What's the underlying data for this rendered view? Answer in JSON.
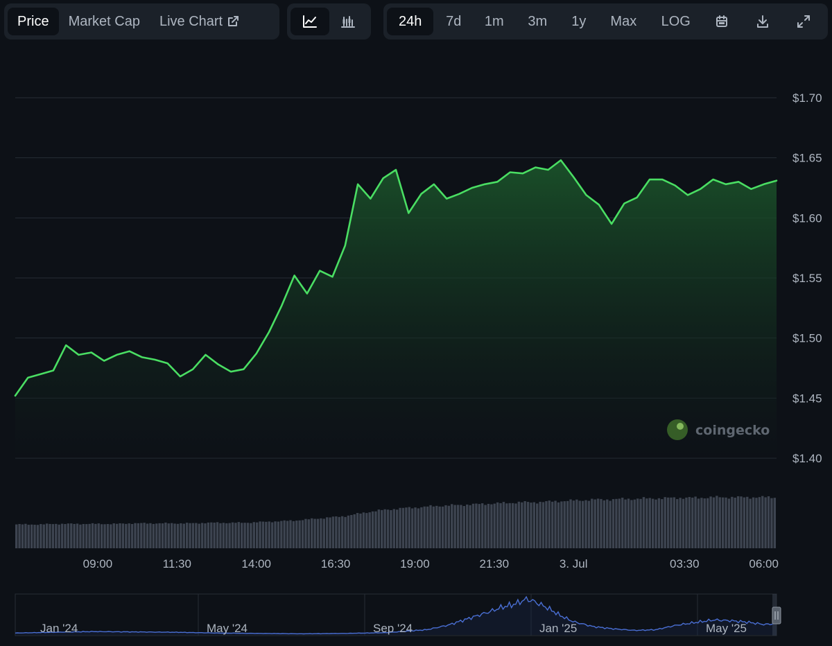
{
  "toolbar": {
    "view_tabs": [
      {
        "label": "Price",
        "active": true
      },
      {
        "label": "Market Cap",
        "active": false
      },
      {
        "label": "Live Chart",
        "active": false
      }
    ],
    "chart_types": [
      {
        "icon": "line-chart-icon",
        "active": true
      },
      {
        "icon": "candlestick-chart-icon",
        "active": false
      }
    ],
    "ranges": [
      {
        "label": "24h",
        "active": true
      },
      {
        "label": "7d",
        "active": false
      },
      {
        "label": "1m",
        "active": false
      },
      {
        "label": "3m",
        "active": false
      },
      {
        "label": "1y",
        "active": false
      },
      {
        "label": "Max",
        "active": false
      },
      {
        "label": "LOG",
        "active": false
      }
    ],
    "tools": [
      {
        "icon": "calendar-icon"
      },
      {
        "icon": "download-icon"
      },
      {
        "icon": "fullscreen-icon"
      }
    ]
  },
  "watermark": {
    "text": "coingecko"
  },
  "colors": {
    "line": "#4ade63",
    "area_top": "#1c5a2c",
    "grid": "#262d36",
    "volume": "#3d4450",
    "navigator_line": "#4a6fd4"
  },
  "chart_data": {
    "type": "area",
    "currency": "USD",
    "y_ticks": [
      "$1.70",
      "$1.65",
      "$1.60",
      "$1.55",
      "$1.50",
      "$1.45",
      "$1.40"
    ],
    "y_tick_values": [
      1.7,
      1.65,
      1.6,
      1.55,
      1.5,
      1.45,
      1.4
    ],
    "ylim": [
      1.4,
      1.7
    ],
    "x_ticks": [
      "09:00",
      "11:30",
      "14:00",
      "16:30",
      "19:00",
      "21:30",
      "3. Jul",
      "03:30",
      "06:00"
    ],
    "x_tick_hours": [
      9.0,
      11.5,
      14.0,
      16.5,
      19.0,
      21.5,
      24.0,
      27.5,
      30.0
    ],
    "xlim_hours": [
      6.4,
      30.4
    ],
    "series": [
      {
        "name": "Price",
        "x_hours": [
          6.4,
          6.8,
          7.2,
          7.6,
          8.0,
          8.4,
          8.8,
          9.2,
          9.6,
          10.0,
          10.4,
          10.8,
          11.2,
          11.6,
          12.0,
          12.4,
          12.8,
          13.2,
          13.6,
          14.0,
          14.4,
          14.8,
          15.2,
          15.6,
          16.0,
          16.4,
          16.8,
          17.2,
          17.6,
          18.0,
          18.4,
          18.8,
          19.2,
          19.6,
          20.0,
          20.4,
          20.8,
          21.2,
          21.6,
          22.0,
          22.4,
          22.8,
          23.2,
          23.6,
          24.0,
          24.4,
          24.8,
          25.2,
          25.6,
          26.0,
          26.4,
          26.8,
          27.2,
          27.6,
          28.0,
          28.4,
          28.8,
          29.2,
          29.6,
          30.0,
          30.4
        ],
        "values": [
          1.452,
          1.467,
          1.47,
          1.473,
          1.494,
          1.486,
          1.488,
          1.481,
          1.486,
          1.489,
          1.484,
          1.482,
          1.479,
          1.468,
          1.474,
          1.486,
          1.478,
          1.472,
          1.474,
          1.487,
          1.505,
          1.527,
          1.552,
          1.537,
          1.556,
          1.551,
          1.577,
          1.628,
          1.616,
          1.633,
          1.64,
          1.604,
          1.62,
          1.628,
          1.616,
          1.62,
          1.625,
          1.628,
          1.63,
          1.638,
          1.637,
          1.642,
          1.64,
          1.648,
          1.634,
          1.619,
          1.611,
          1.595,
          1.612,
          1.617,
          1.632,
          1.632,
          1.627,
          1.619,
          1.624,
          1.632,
          1.628,
          1.63,
          1.624,
          1.628,
          1.631
        ]
      }
    ],
    "volume_series": {
      "name": "Volume",
      "relative_values": [
        0.43,
        0.43,
        0.43,
        0.44,
        0.44,
        0.44,
        0.44,
        0.44,
        0.44,
        0.45,
        0.45,
        0.45,
        0.45,
        0.45,
        0.45,
        0.46,
        0.46,
        0.46,
        0.46,
        0.47,
        0.48,
        0.49,
        0.5,
        0.52,
        0.54,
        0.56,
        0.58,
        0.62,
        0.66,
        0.69,
        0.71,
        0.73,
        0.74,
        0.76,
        0.77,
        0.78,
        0.79,
        0.8,
        0.81,
        0.82,
        0.83,
        0.83,
        0.84,
        0.85,
        0.86,
        0.87,
        0.88,
        0.88,
        0.89,
        0.89,
        0.9,
        0.9,
        0.91,
        0.91,
        0.91,
        0.92,
        0.92,
        0.92,
        0.92,
        0.92,
        0.92
      ]
    },
    "navigator": {
      "x_ticks": [
        "Jan '24",
        "May '24",
        "Sep '24",
        "Jan '25",
        "May '25"
      ],
      "x_tick_months": [
        0,
        4,
        8,
        12,
        16
      ],
      "xlim_months": [
        -0.4,
        17.9
      ],
      "ylim": [
        0,
        1
      ],
      "series": {
        "x_months": [
          -0.4,
          0.5,
          1.5,
          2.5,
          3.5,
          4.5,
          5.5,
          6.5,
          7.5,
          8.5,
          9.5,
          10.0,
          10.5,
          11.0,
          11.3,
          11.6,
          11.9,
          12.1,
          12.4,
          12.7,
          13.0,
          13.5,
          14.0,
          14.5,
          15.0,
          15.5,
          16.0,
          16.4,
          16.8,
          17.2,
          17.6,
          17.9
        ],
        "relative_values": [
          0.05,
          0.07,
          0.09,
          0.08,
          0.07,
          0.05,
          0.04,
          0.03,
          0.04,
          0.06,
          0.14,
          0.26,
          0.44,
          0.62,
          0.74,
          0.82,
          0.96,
          0.88,
          0.72,
          0.52,
          0.36,
          0.22,
          0.16,
          0.12,
          0.14,
          0.26,
          0.34,
          0.4,
          0.38,
          0.34,
          0.28,
          0.3
        ]
      }
    }
  }
}
